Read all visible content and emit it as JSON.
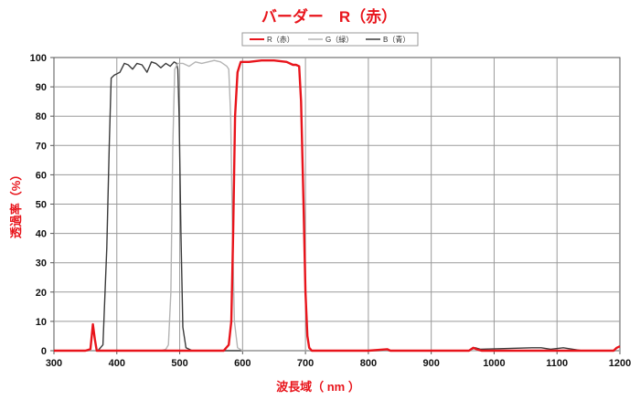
{
  "chart_data": {
    "type": "line",
    "title": "バーダー　R（赤）",
    "xlabel": "波長域（ nm ）",
    "ylabel": "透過率（%）",
    "xlim": [
      300,
      1200
    ],
    "ylim": [
      0,
      100
    ],
    "x_ticks": [
      "300",
      "400",
      "500",
      "600",
      "700",
      "800",
      "900",
      "1000",
      "1100",
      "1200"
    ],
    "y_ticks": [
      "0",
      "10",
      "20",
      "30",
      "40",
      "50",
      "60",
      "70",
      "80",
      "90",
      "100"
    ],
    "grid": true,
    "legend_position": "top-center",
    "series": [
      {
        "name": "R（赤）",
        "color": "#e8141b",
        "points": [
          [
            300,
            0
          ],
          [
            350,
            0
          ],
          [
            358,
            0.5
          ],
          [
            362,
            9
          ],
          [
            365,
            4
          ],
          [
            368,
            0
          ],
          [
            500,
            0
          ],
          [
            570,
            0
          ],
          [
            578,
            2
          ],
          [
            582,
            10
          ],
          [
            585,
            40
          ],
          [
            588,
            80
          ],
          [
            592,
            95
          ],
          [
            597,
            98.5
          ],
          [
            610,
            98.5
          ],
          [
            630,
            99
          ],
          [
            650,
            99
          ],
          [
            670,
            98.5
          ],
          [
            680,
            97.5
          ],
          [
            685,
            97.5
          ],
          [
            690,
            97
          ],
          [
            693,
            85
          ],
          [
            697,
            50
          ],
          [
            700,
            20
          ],
          [
            703,
            5
          ],
          [
            706,
            1
          ],
          [
            710,
            0
          ],
          [
            800,
            0
          ],
          [
            830,
            0.5
          ],
          [
            835,
            0
          ],
          [
            960,
            0
          ],
          [
            967,
            1
          ],
          [
            972,
            0.5
          ],
          [
            980,
            0
          ],
          [
            1100,
            0
          ],
          [
            1190,
            0
          ],
          [
            1195,
            1
          ],
          [
            1200,
            1.5
          ]
        ]
      },
      {
        "name": "G（緑）",
        "color": "#b4b4b4",
        "points": [
          [
            300,
            0
          ],
          [
            470,
            0
          ],
          [
            478,
            0.5
          ],
          [
            482,
            2
          ],
          [
            486,
            20
          ],
          [
            489,
            70
          ],
          [
            492,
            96
          ],
          [
            497,
            98
          ],
          [
            505,
            98
          ],
          [
            515,
            97
          ],
          [
            525,
            98.5
          ],
          [
            535,
            98
          ],
          [
            545,
            98.5
          ],
          [
            555,
            99
          ],
          [
            565,
            98.5
          ],
          [
            575,
            97
          ],
          [
            578,
            96
          ],
          [
            581,
            80
          ],
          [
            584,
            40
          ],
          [
            587,
            10
          ],
          [
            592,
            1
          ],
          [
            600,
            0
          ],
          [
            1200,
            0
          ]
        ]
      },
      {
        "name": "B（青）",
        "color": "#3a3a3a",
        "points": [
          [
            300,
            0
          ],
          [
            370,
            0
          ],
          [
            378,
            2
          ],
          [
            384,
            35
          ],
          [
            388,
            70
          ],
          [
            391,
            93
          ],
          [
            396,
            94
          ],
          [
            405,
            95
          ],
          [
            412,
            98
          ],
          [
            418,
            97.5
          ],
          [
            425,
            96
          ],
          [
            432,
            98
          ],
          [
            440,
            97.5
          ],
          [
            448,
            95
          ],
          [
            455,
            98.5
          ],
          [
            462,
            98
          ],
          [
            470,
            96.5
          ],
          [
            478,
            98
          ],
          [
            485,
            97
          ],
          [
            491,
            98.5
          ],
          [
            495,
            98
          ],
          [
            497,
            96
          ],
          [
            499,
            80
          ],
          [
            502,
            40
          ],
          [
            505,
            8
          ],
          [
            510,
            1
          ],
          [
            520,
            0
          ],
          [
            960,
            0
          ],
          [
            970,
            1
          ],
          [
            978,
            0.5
          ],
          [
            1060,
            1
          ],
          [
            1075,
            1
          ],
          [
            1090,
            0.5
          ],
          [
            1110,
            1
          ],
          [
            1125,
            0.5
          ],
          [
            1140,
            0
          ],
          [
            1200,
            0
          ]
        ]
      }
    ]
  }
}
